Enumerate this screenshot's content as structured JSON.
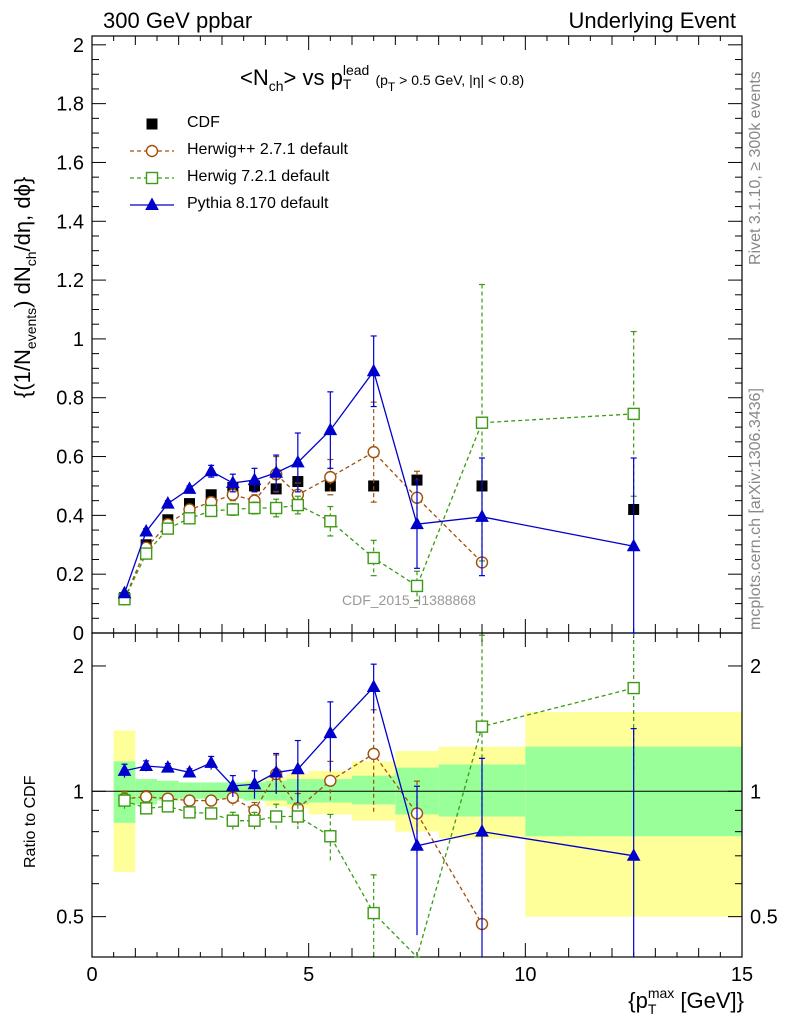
{
  "header": {
    "left": "300 GeV ppbar",
    "right": "Underlying Event"
  },
  "side_notes": {
    "rivet": "Rivet 3.1.10, ≥ 300k events",
    "mcplots": "mcplots.cern.ch [arXiv:1306.3436]"
  },
  "watermark": "CDF_2015_I1388868",
  "labels": {
    "title_main": "<N",
    "title_ch": "ch",
    "title_vs": "> vs p",
    "title_sup": "lead",
    "title_sub": "T",
    "title_cut": "(p",
    "title_cut_sub": "T",
    "title_cut_rest": " > 0.5 GeV, |η| < 0.8)",
    "ylabel_main": "{(1/N",
    "ylabel_events": "events",
    "ylabel_mid": ") dN",
    "ylabel_ch": "ch",
    "ylabel_end": "/dη, dϕ}",
    "ylabel_ratio": "Ratio to CDF",
    "xlabel_pre": "{p",
    "xlabel_sup": "max",
    "xlabel_sub": "T",
    "xlabel_post": " [GeV]}"
  },
  "legend": [
    "CDF",
    "Herwig++ 2.7.1 default",
    "Herwig 7.2.1 default",
    "Pythia 8.170 default"
  ],
  "chart_data": {
    "type": "scatter",
    "xlim": [
      0,
      15
    ],
    "ylim": [
      0,
      2.03
    ],
    "ratio_ylim": [
      0.4,
      2.4
    ],
    "x_ticks": [
      "0",
      "5",
      "10",
      "15"
    ],
    "y_ticks": [
      "0",
      "0.2",
      "0.4",
      "0.6",
      "0.8",
      "1",
      "1.2",
      "1.4",
      "1.6",
      "1.8",
      "2"
    ],
    "ratio_ticks": [
      "0.5",
      "1",
      "2"
    ],
    "colors": {
      "cdf": "#000000",
      "herwigpp": "#a0500a",
      "herwig7": "#3c9a14",
      "pythia": "#0000cc",
      "band_inner": "#99ff99",
      "band_outer": "#ffff99"
    },
    "data": {
      "name": "CDF",
      "x": [
        0.75,
        1.25,
        1.75,
        2.25,
        2.75,
        3.25,
        3.75,
        4.25,
        4.75,
        5.5,
        6.5,
        7.5,
        9.0,
        12.5
      ],
      "y": [
        0.12,
        0.3,
        0.385,
        0.44,
        0.47,
        0.495,
        0.5,
        0.49,
        0.515,
        0.5,
        0.5,
        0.52,
        0.5,
        0.42
      ],
      "bins": [
        [
          0.5,
          1.0
        ],
        [
          1.0,
          1.5
        ],
        [
          1.5,
          2.0
        ],
        [
          2.0,
          2.5
        ],
        [
          2.5,
          3.0
        ],
        [
          3.0,
          3.5
        ],
        [
          3.5,
          4.0
        ],
        [
          4.0,
          4.5
        ],
        [
          4.5,
          5.0
        ],
        [
          5.0,
          6.0
        ],
        [
          6.0,
          7.0
        ],
        [
          7.0,
          8.0
        ],
        [
          8.0,
          10.0
        ],
        [
          10.0,
          15.0
        ]
      ]
    },
    "series": [
      {
        "name": "Herwig++ 2.7.1 default",
        "y": [
          0.115,
          0.29,
          0.37,
          0.42,
          0.445,
          0.47,
          0.45,
          0.54,
          0.47,
          0.53,
          0.615,
          0.46,
          0.24,
          null
        ],
        "err": [
          0.005,
          0.01,
          0.01,
          0.01,
          0.01,
          0.02,
          0.02,
          0.06,
          0.04,
          0.06,
          0.17,
          0.09,
          0.0,
          null
        ]
      },
      {
        "name": "Herwig 7.2.1 default",
        "y": [
          0.115,
          0.27,
          0.355,
          0.39,
          0.415,
          0.42,
          0.425,
          0.425,
          0.435,
          0.38,
          0.255,
          0.16,
          0.715,
          0.745
        ],
        "err": [
          0.005,
          0.01,
          0.01,
          0.01,
          0.01,
          0.02,
          0.02,
          0.03,
          0.03,
          0.05,
          0.06,
          0.05,
          0.47,
          0.28
        ]
      },
      {
        "name": "Pythia 8.170 default",
        "y": [
          0.135,
          0.345,
          0.44,
          0.49,
          0.55,
          0.51,
          0.52,
          0.545,
          0.58,
          0.69,
          0.89,
          0.37,
          0.395,
          0.295
        ],
        "err": [
          0.005,
          0.01,
          0.01,
          0.01,
          0.02,
          0.03,
          0.04,
          0.06,
          0.1,
          0.13,
          0.12,
          0.15,
          0.2,
          0.3
        ]
      }
    ],
    "ratio": {
      "herwigpp": [
        0.96,
        0.97,
        0.96,
        0.95,
        0.95,
        0.965,
        0.9,
        1.1,
        0.91,
        1.06,
        1.23,
        0.885,
        0.48,
        null
      ],
      "herwig7": [
        0.95,
        0.91,
        0.92,
        0.89,
        0.885,
        0.85,
        0.85,
        0.87,
        0.87,
        0.78,
        0.51,
        0.3,
        1.43,
        1.77
      ],
      "pythia": [
        1.12,
        1.15,
        1.14,
        1.11,
        1.17,
        1.03,
        1.04,
        1.11,
        1.13,
        1.38,
        1.78,
        0.74,
        0.8,
        0.7
      ],
      "band_inner": [
        [
          0.84,
          1.18
        ],
        [
          0.93,
          1.07
        ],
        [
          0.95,
          1.06
        ],
        [
          0.96,
          1.05
        ],
        [
          0.96,
          1.05
        ],
        [
          0.96,
          1.05
        ],
        [
          0.95,
          1.05
        ],
        [
          0.95,
          1.06
        ],
        [
          0.93,
          1.07
        ],
        [
          0.94,
          1.07
        ],
        [
          0.93,
          1.09
        ],
        [
          0.88,
          1.14
        ],
        [
          0.87,
          1.16
        ],
        [
          0.78,
          1.28
        ]
      ],
      "band_outer": [
        [
          0.64,
          1.4
        ],
        [
          0.93,
          1.07
        ],
        [
          0.95,
          1.06
        ],
        [
          0.96,
          1.05
        ],
        [
          0.96,
          1.05
        ],
        [
          0.96,
          1.05
        ],
        [
          0.95,
          1.06
        ],
        [
          0.92,
          1.08
        ],
        [
          0.91,
          1.1
        ],
        [
          0.88,
          1.12
        ],
        [
          0.85,
          1.18
        ],
        [
          0.8,
          1.25
        ],
        [
          0.77,
          1.28
        ],
        [
          0.5,
          1.55
        ]
      ]
    }
  }
}
